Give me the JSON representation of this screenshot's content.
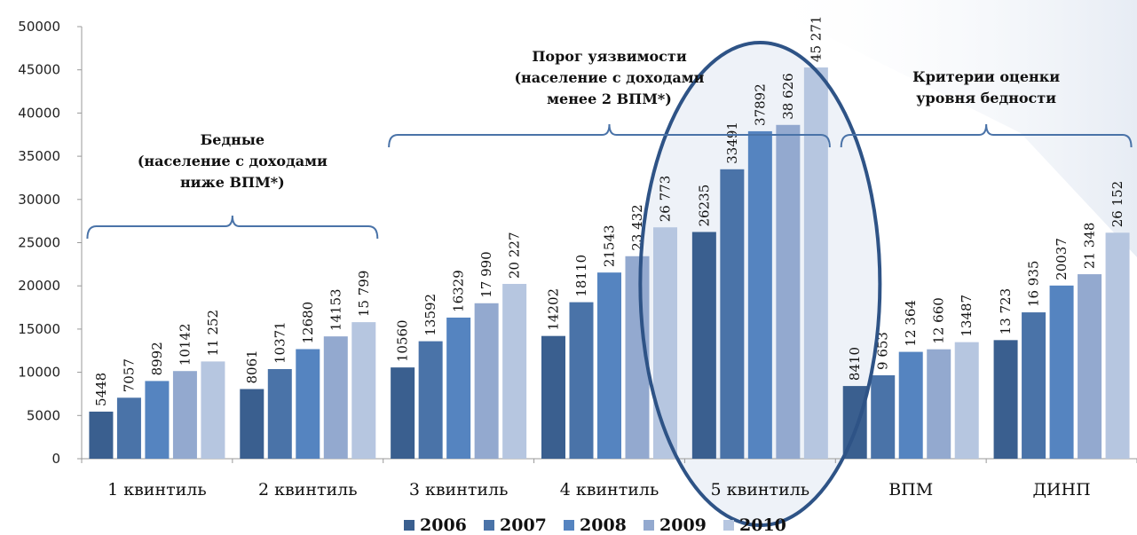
{
  "chart_data": {
    "type": "bar",
    "title": "",
    "xlabel": "",
    "ylabel": "",
    "ylim": [
      0,
      50000
    ],
    "yticks": [
      "0",
      "5000",
      "10000",
      "15000",
      "20000",
      "25000",
      "30000",
      "35000",
      "40000",
      "45000",
      "50000"
    ],
    "categories": [
      "1 квинтиль",
      "2 квинтиль",
      "3 квинтиль",
      "4 квинтиль",
      "5 квинтиль",
      "ВПМ",
      "ДИНП"
    ],
    "series": [
      {
        "name": "2006",
        "color": "#3a5f8f",
        "values": [
          5448,
          8061,
          10560,
          14202,
          26235,
          8410,
          13723
        ],
        "labels": [
          "5448",
          "8061",
          "10560",
          "14202",
          "26235",
          "8410",
          "13 723"
        ]
      },
      {
        "name": "2007",
        "color": "#4a73a8",
        "values": [
          7057,
          10371,
          13592,
          18110,
          33491,
          9653,
          16935
        ],
        "labels": [
          "7057",
          "10371",
          "13592",
          "18110",
          "33491",
          "9 653",
          "16 935"
        ]
      },
      {
        "name": "2008",
        "color": "#5584c0",
        "values": [
          8992,
          12680,
          16329,
          21543,
          37892,
          12364,
          20037
        ],
        "labels": [
          "8992",
          "12680",
          "16329",
          "21543",
          "37892",
          "12 364",
          "20037"
        ]
      },
      {
        "name": "2009",
        "color": "#93a9cf",
        "values": [
          10142,
          14153,
          17990,
          23432,
          38626,
          12660,
          21348
        ],
        "labels": [
          "10142",
          "14153",
          "17 990",
          "23 432",
          "38 626",
          "12 660",
          "21 348"
        ]
      },
      {
        "name": "2010",
        "color": "#b6c6e0",
        "values": [
          11252,
          15799,
          20227,
          26773,
          45271,
          13487,
          26152
        ],
        "labels": [
          "11 252",
          "15 799",
          "20 227",
          "26 773",
          "45 271",
          "13487",
          "26 152"
        ]
      }
    ],
    "grid": false,
    "legend": "bottom",
    "annotations": [
      {
        "lines": [
          "Бедные",
          "(население с доходами",
          "ниже ВПМ*)"
        ],
        "span": [
          0,
          1
        ]
      },
      {
        "lines": [
          "Порог уязвимости",
          "(население с доходами",
          "менее 2 ВПМ*)"
        ],
        "span": [
          2,
          4
        ]
      },
      {
        "lines": [
          "Критерии оценки",
          "уровня бедности"
        ],
        "span": [
          5,
          6
        ]
      }
    ],
    "highlight_category": 4
  }
}
